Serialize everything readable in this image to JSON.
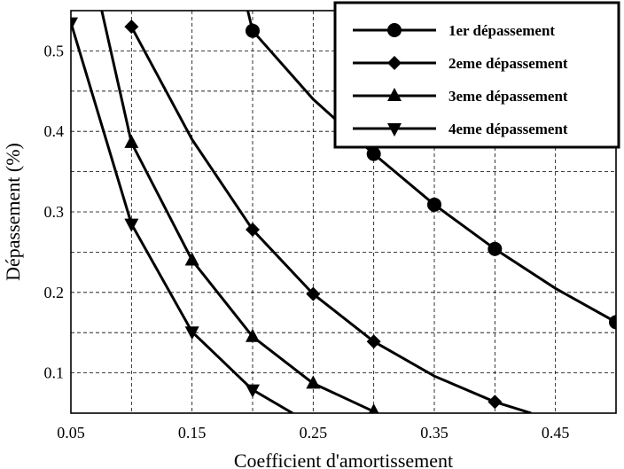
{
  "chart_data": {
    "type": "line",
    "xlabel": "Coefficient d'amortissement",
    "ylabel": "Dépassement (%)",
    "xlim": [
      0.05,
      0.5
    ],
    "ylim": [
      0.05,
      0.55
    ],
    "xticks": [
      0.05,
      0.15,
      0.25,
      0.35,
      0.45
    ],
    "xtick_labels": [
      "0.05",
      "0.15",
      "0.25",
      "0.35",
      "0.45"
    ],
    "yticks": [
      0.1,
      0.2,
      0.3,
      0.4,
      0.5
    ],
    "ytick_labels": [
      "0.1",
      "0.2",
      "0.3",
      "0.4",
      "0.5"
    ],
    "grid": true,
    "legend_position": "top-right",
    "series": [
      {
        "name": "1er dépassement",
        "marker": "circle",
        "x": [
          0.188,
          0.2,
          0.25,
          0.3,
          0.35,
          0.4,
          0.45,
          0.5
        ],
        "y": [
          0.6,
          0.525,
          0.44,
          0.372,
          0.309,
          0.254,
          0.205,
          0.163
        ],
        "marked": [
          false,
          true,
          false,
          true,
          true,
          true,
          false,
          true
        ]
      },
      {
        "name": "2eme dépassement",
        "marker": "diamond",
        "x": [
          0.1,
          0.15,
          0.2,
          0.25,
          0.3,
          0.35,
          0.4,
          0.43
        ],
        "y": [
          0.53,
          0.39,
          0.278,
          0.198,
          0.139,
          0.096,
          0.064,
          0.05
        ],
        "marked": [
          true,
          false,
          true,
          true,
          true,
          false,
          true,
          false
        ]
      },
      {
        "name": "3eme dépassement",
        "marker": "triangle-up",
        "x": [
          0.068,
          0.1,
          0.15,
          0.2,
          0.25,
          0.3
        ],
        "y": [
          0.6,
          0.386,
          0.24,
          0.145,
          0.087,
          0.052
        ],
        "marked": [
          false,
          true,
          true,
          true,
          true,
          true
        ]
      },
      {
        "name": "4eme dépassement",
        "marker": "triangle-down",
        "x": [
          0.05,
          0.1,
          0.15,
          0.2,
          0.233
        ],
        "y": [
          0.535,
          0.285,
          0.151,
          0.079,
          0.05
        ],
        "marked": [
          true,
          true,
          true,
          true,
          false
        ]
      }
    ]
  }
}
